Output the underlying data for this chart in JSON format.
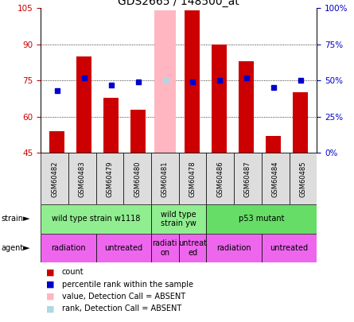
{
  "title": "GDS2665 / 148500_at",
  "samples": [
    "GSM60482",
    "GSM60483",
    "GSM60479",
    "GSM60480",
    "GSM60481",
    "GSM60478",
    "GSM60486",
    "GSM60487",
    "GSM60484",
    "GSM60485"
  ],
  "count_values": [
    54,
    85,
    68,
    63,
    null,
    104,
    90,
    83,
    52,
    70
  ],
  "rank_values": [
    43,
    52,
    47,
    49,
    null,
    49,
    50,
    52,
    45,
    50
  ],
  "absent_count": [
    null,
    null,
    null,
    null,
    104,
    null,
    null,
    null,
    null,
    null
  ],
  "absent_rank": [
    null,
    null,
    null,
    null,
    50,
    null,
    null,
    null,
    null,
    null
  ],
  "ylim_left": [
    45,
    105
  ],
  "ylim_right": [
    0,
    100
  ],
  "yticks_left": [
    45,
    60,
    75,
    90,
    105
  ],
  "yticks_right": [
    0,
    25,
    50,
    75,
    100
  ],
  "ytick_labels_left": [
    "45",
    "60",
    "75",
    "90",
    "105"
  ],
  "ytick_labels_right": [
    "0%",
    "25%",
    "50%",
    "75%",
    "100%"
  ],
  "strain_groups": [
    {
      "label": "wild type strain w1118",
      "start": 0,
      "end": 4,
      "color": "#90EE90"
    },
    {
      "label": "wild type\nstrain yw",
      "start": 4,
      "end": 6,
      "color": "#90EE90"
    },
    {
      "label": "p53 mutant",
      "start": 6,
      "end": 10,
      "color": "#66DD66"
    }
  ],
  "agent_groups": [
    {
      "label": "radiation",
      "start": 0,
      "end": 2,
      "color": "#EE66EE"
    },
    {
      "label": "untreated",
      "start": 2,
      "end": 4,
      "color": "#EE66EE"
    },
    {
      "label": "radiati\non",
      "start": 4,
      "end": 5,
      "color": "#EE66EE"
    },
    {
      "label": "untreat\ned",
      "start": 5,
      "end": 6,
      "color": "#EE66EE"
    },
    {
      "label": "radiation",
      "start": 6,
      "end": 8,
      "color": "#EE66EE"
    },
    {
      "label": "untreated",
      "start": 8,
      "end": 10,
      "color": "#EE66EE"
    }
  ],
  "bar_color": "#CC0000",
  "rank_color": "#0000CC",
  "absent_bar_color": "#FFB6C1",
  "absent_rank_color": "#ADD8E6",
  "bar_width": 0.55,
  "absent_bar_width": 0.8,
  "left_axis_color": "#CC0000",
  "right_axis_color": "#0000CC",
  "title_fontsize": 10,
  "tick_fontsize": 7.5,
  "sample_fontsize": 6,
  "group_fontsize": 7,
  "legend_fontsize": 7
}
